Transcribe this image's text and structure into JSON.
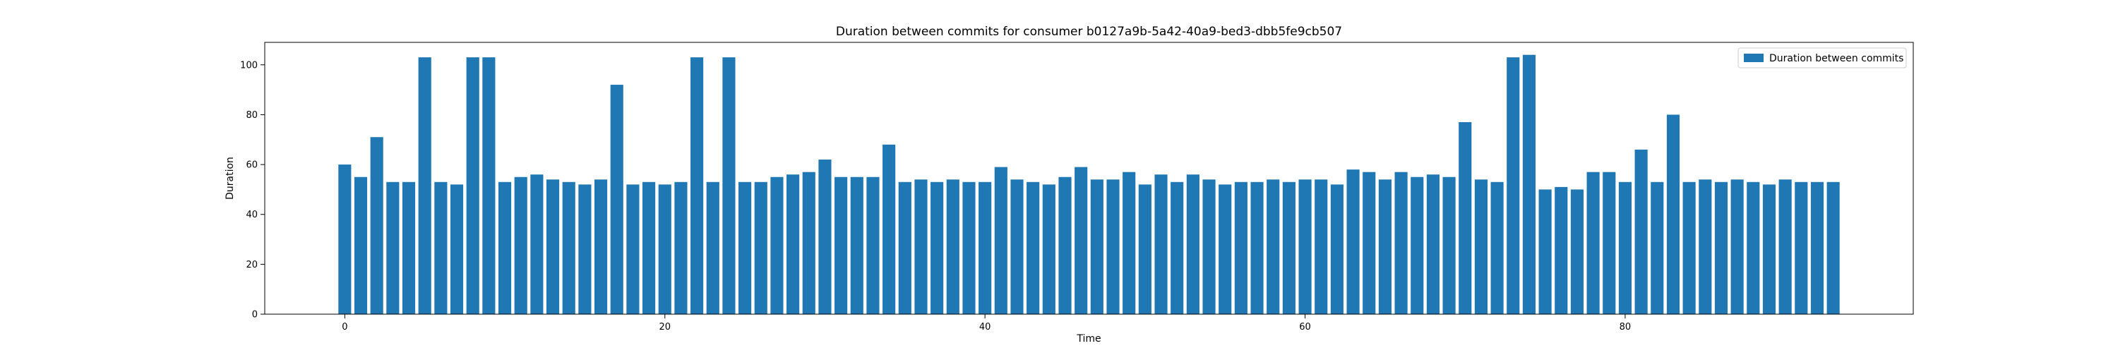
{
  "chart_data": {
    "type": "bar",
    "title": "Duration between commits for consumer b0127a9b-5a42-40a9-bed3-dbb5fe9cb507",
    "xlabel": "Time",
    "ylabel": "Duration",
    "x": [
      0,
      1,
      2,
      3,
      4,
      5,
      6,
      7,
      8,
      9,
      10,
      11,
      12,
      13,
      14,
      15,
      16,
      17,
      18,
      19,
      20,
      21,
      22,
      23,
      24,
      25,
      26,
      27,
      28,
      29,
      30,
      31,
      32,
      33,
      34,
      35,
      36,
      37,
      38,
      39,
      40,
      41,
      42,
      43,
      44,
      45,
      46,
      47,
      48,
      49,
      50,
      51,
      52,
      53,
      54,
      55,
      56,
      57,
      58,
      59,
      60,
      61,
      62,
      63,
      64,
      65,
      66,
      67,
      68,
      69,
      70,
      71,
      72,
      73,
      74,
      75,
      76,
      77,
      78,
      79,
      80,
      81,
      82,
      83,
      84,
      85,
      86,
      87,
      88,
      89,
      90,
      91,
      92,
      93
    ],
    "series": [
      {
        "name": "Duration between commits",
        "color": "#1f77b4",
        "values": [
          60,
          55,
          71,
          53,
          53,
          103,
          53,
          52,
          103,
          103,
          53,
          55,
          56,
          54,
          53,
          52,
          54,
          92,
          52,
          53,
          52,
          53,
          103,
          53,
          103,
          53,
          53,
          55,
          56,
          57,
          62,
          55,
          55,
          55,
          68,
          53,
          54,
          53,
          54,
          53,
          53,
          59,
          54,
          53,
          52,
          55,
          59,
          54,
          54,
          57,
          52,
          56,
          53,
          56,
          54,
          52,
          53,
          53,
          54,
          53,
          54,
          54,
          52,
          58,
          57,
          54,
          57,
          55,
          56,
          55,
          77,
          54,
          53,
          103,
          104,
          50,
          51,
          50,
          57,
          57,
          53,
          66,
          53,
          80,
          53,
          54,
          53,
          54,
          53,
          52,
          54,
          53,
          53,
          53
        ]
      }
    ],
    "xlim": [
      -5,
      98
    ],
    "ylim": [
      0,
      109
    ],
    "xticks": [
      0,
      20,
      40,
      60,
      80
    ],
    "yticks": [
      0,
      20,
      40,
      60,
      80,
      100
    ],
    "legend_position": "top-right",
    "grid": false
  }
}
